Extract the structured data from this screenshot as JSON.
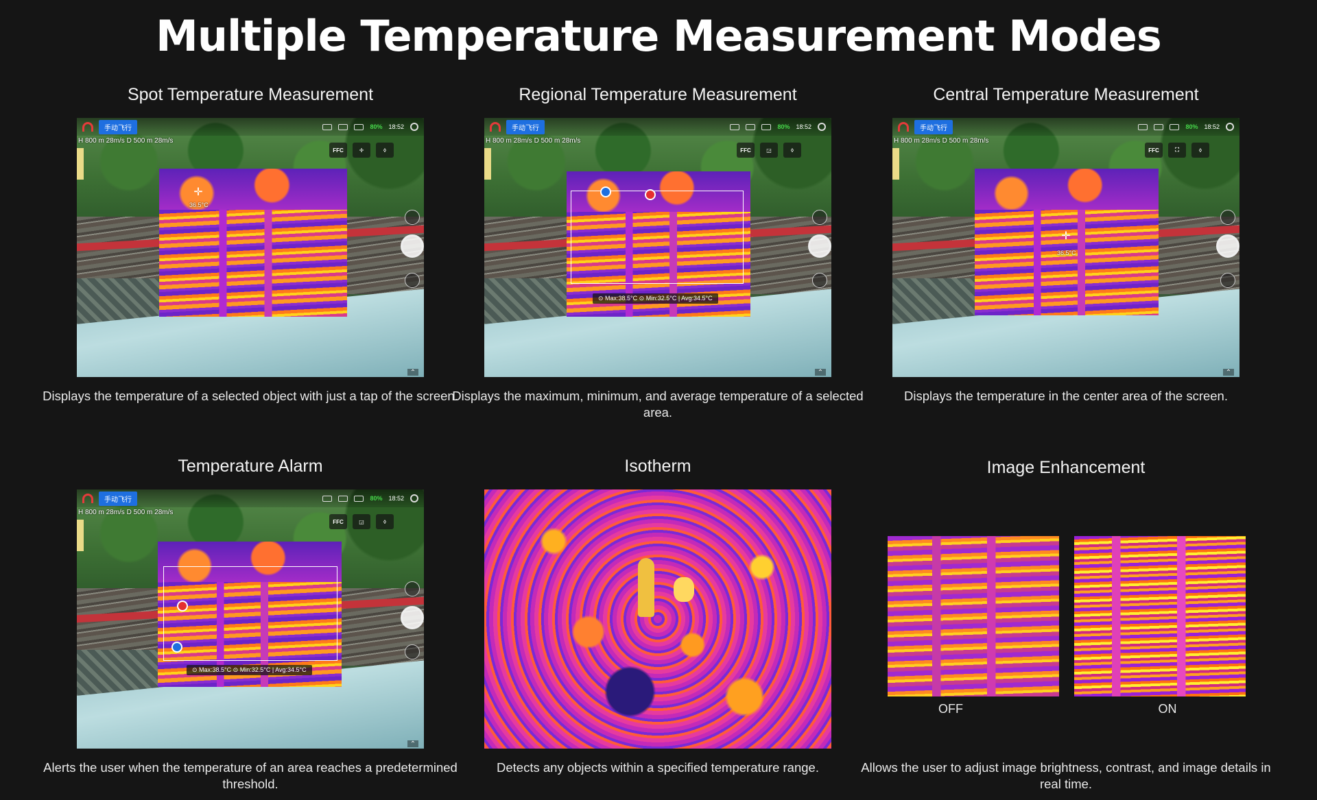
{
  "page": {
    "title": "Multiple Temperature Measurement Modes"
  },
  "hud": {
    "mode_label": "手动飞行",
    "telemetry": "H 800 m  28m/s   D 500 m  28m/s",
    "battery": "80%",
    "time": "18:52",
    "ffc": "FFC"
  },
  "cards": {
    "spot": {
      "title": "Spot Temperature Measurement",
      "description": "Displays the temperature of a selected object with just a tap of the screen.",
      "spot_temp": "36.5°C"
    },
    "regional": {
      "title": "Regional Temperature Measurement",
      "description": "Displays the maximum, minimum, and average temperature of a selected area.",
      "stats": "⊙ Max:38.5°C  ⊙ Min:32.5°C  |  Avg:34.5°C"
    },
    "central": {
      "title": "Central Temperature Measurement",
      "description": "Displays the temperature in the center area of the screen.",
      "center_temp": "36.5°C"
    },
    "alarm": {
      "title": "Temperature Alarm",
      "description": "Alerts the user when the temperature of an area reaches a predetermined threshold.",
      "stats": "⊙ Max:38.5°C  ⊙ Min:32.5°C  |  Avg:34.5°C"
    },
    "isotherm": {
      "title": "Isotherm",
      "description": "Detects any objects within a specified temperature range."
    },
    "enhancement": {
      "title": "Image Enhancement",
      "description": "Allows the user to adjust image brightness, contrast, and image details in real time.",
      "off_label": "OFF",
      "on_label": "ON"
    }
  },
  "colors": {
    "background": "#151515",
    "accent_blue": "#1e6fe0",
    "marker_red": "#e53030",
    "battery_green": "#46d64a"
  },
  "icons": [
    "logo-icon",
    "camera-icon",
    "signal-icon",
    "battery-icon",
    "gear-icon",
    "crosshair-icon",
    "region-icon",
    "shutter-icon",
    "chevron-up-icon",
    "alarm-icon"
  ]
}
